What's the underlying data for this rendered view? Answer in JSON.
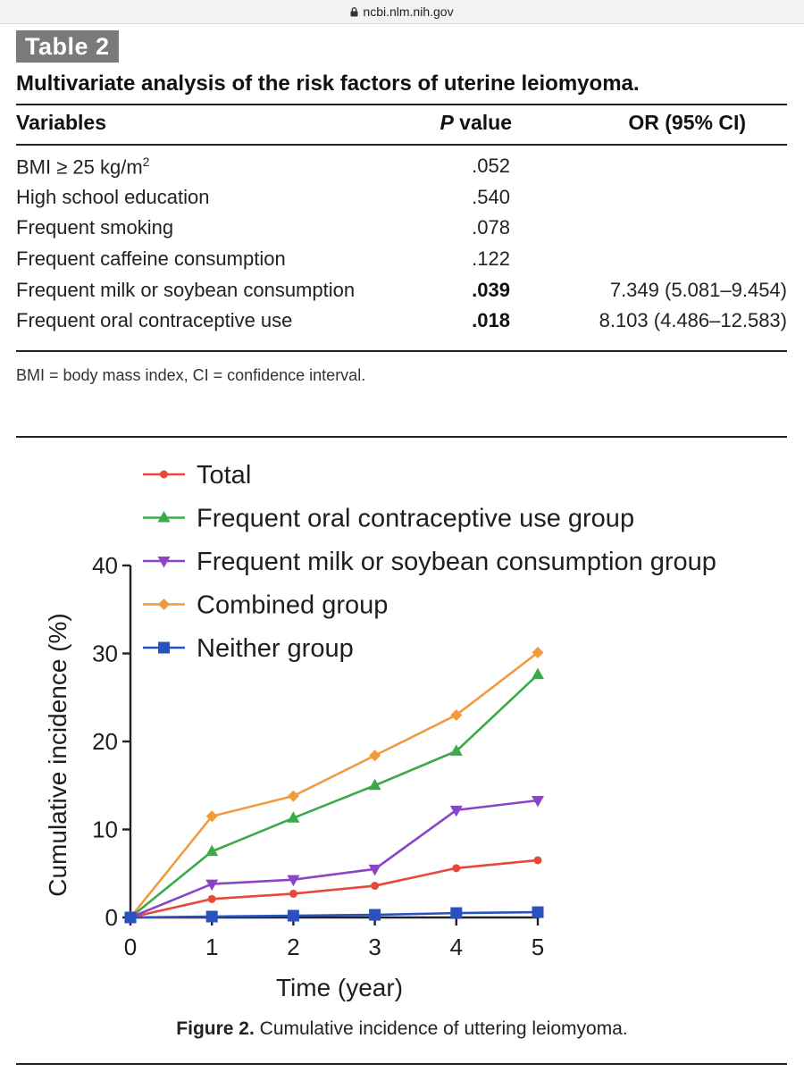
{
  "browser": {
    "url": "ncbi.nlm.nih.gov"
  },
  "table": {
    "badge": "Table 2",
    "caption": "Multivariate analysis of the risk factors of uterine leiomyoma.",
    "headers": {
      "variables": "Variables",
      "p_italic": "P",
      "p_rest": " value",
      "or": "OR (95% CI)"
    },
    "rows": [
      {
        "variable": "BMI ≥ 25 kg/m",
        "sup": "2",
        "p": ".052",
        "or": "",
        "bold": false
      },
      {
        "variable": "High school education",
        "sup": "",
        "p": ".540",
        "or": "",
        "bold": false
      },
      {
        "variable": "Frequent smoking",
        "sup": "",
        "p": ".078",
        "or": "",
        "bold": false
      },
      {
        "variable": "Frequent caffeine consumption",
        "sup": "",
        "p": ".122",
        "or": "",
        "bold": false
      },
      {
        "variable": "Frequent milk or soybean consumption",
        "sup": "",
        "p": ".039",
        "or": "7.349 (5.081–9.454)",
        "bold": true
      },
      {
        "variable": "Frequent oral contraceptive use",
        "sup": "",
        "p": ".018",
        "or": "8.103 (4.486–12.583)",
        "bold": true
      }
    ],
    "footnote": "BMI = body mass index, CI = confidence interval."
  },
  "figure": {
    "label": "Figure 2.",
    "caption": " Cumulative incidence of uttering leiomyoma."
  },
  "chart_data": {
    "type": "line",
    "xlabel": "Time (year)",
    "ylabel": "Cumulative incidence (%)",
    "x": [
      0,
      1,
      2,
      3,
      4,
      5
    ],
    "xlim": [
      0,
      5
    ],
    "ylim": [
      0,
      40
    ],
    "xticks": [
      "0",
      "1",
      "2",
      "3",
      "4",
      "5"
    ],
    "yticks": [
      0,
      10,
      20,
      30,
      40
    ],
    "legend_position": "top-left",
    "grid": false,
    "series": [
      {
        "name": "Total",
        "color": "#e8483a",
        "marker": "circle",
        "values": [
          0,
          2.1,
          2.7,
          3.6,
          5.6,
          6.5
        ]
      },
      {
        "name": "Frequent oral contraceptive use group",
        "color": "#3aaa4a",
        "marker": "triangle-up",
        "values": [
          0,
          7.5,
          11.3,
          15.0,
          18.9,
          27.6
        ]
      },
      {
        "name": "Frequent milk or soybean consumption group",
        "color": "#8a44c8",
        "marker": "triangle-down",
        "values": [
          0,
          3.8,
          4.3,
          5.5,
          12.2,
          13.3
        ]
      },
      {
        "name": "Combined group",
        "color": "#f29a3e",
        "marker": "diamond",
        "values": [
          0,
          11.5,
          13.8,
          18.4,
          23.0,
          30.1
        ]
      },
      {
        "name": "Neither group",
        "color": "#2a52be",
        "marker": "square",
        "values": [
          0,
          0.1,
          0.2,
          0.3,
          0.5,
          0.6
        ]
      }
    ]
  }
}
